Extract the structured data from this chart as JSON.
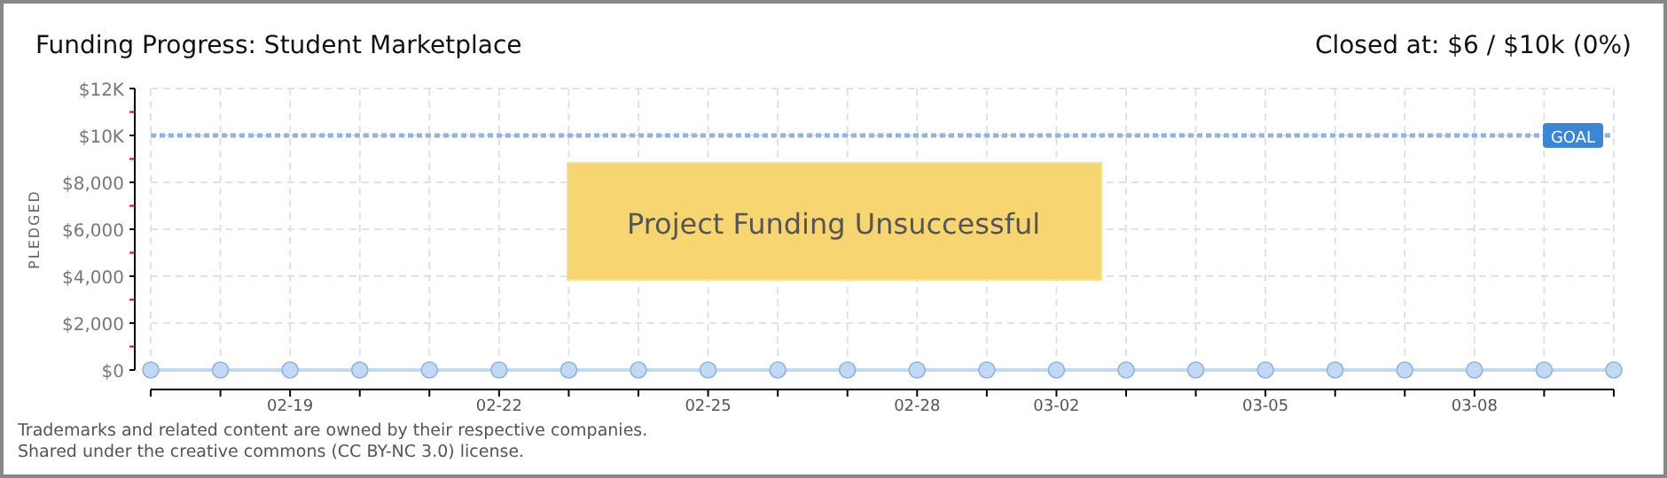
{
  "chart_data": {
    "type": "line",
    "title": "Funding Progress: Student Marketplace",
    "subtitle": "Closed at: $6 / $10k (0%)",
    "ylabel": "PLEDGED",
    "x": [
      "--02-17",
      "--02-18",
      "--02-19",
      "--02-20",
      "--02-21",
      "--02-22",
      "--02-23",
      "--02-24",
      "--02-25",
      "--02-26",
      "--02-27",
      "--02-28",
      "--03-01",
      "--03-02",
      "--03-03",
      "--03-04",
      "--03-05",
      "--03-06",
      "--03-07",
      "--03-08",
      "--03-09",
      "--03-10"
    ],
    "series": [
      {
        "color": "#c2d9f3",
        "values": [
          0,
          0,
          0,
          0,
          0,
          0,
          0,
          0,
          0,
          0,
          0,
          0,
          0,
          0,
          0,
          0,
          0,
          0,
          0,
          0,
          0,
          0
        ]
      }
    ],
    "xlim": [
      "--02-17",
      "--03-10"
    ],
    "xticks": [
      {
        "value": "--02-17",
        "label": null
      },
      {
        "value": "--02-18",
        "label": null
      },
      {
        "value": "--02-19",
        "label": "02-19"
      },
      {
        "value": "--02-20",
        "label": null
      },
      {
        "value": "--02-21",
        "label": null
      },
      {
        "value": "--02-22",
        "label": "02-22"
      },
      {
        "value": "--02-23",
        "label": null
      },
      {
        "value": "--02-24",
        "label": null
      },
      {
        "value": "--02-25",
        "label": "02-25"
      },
      {
        "value": "--02-26",
        "label": null
      },
      {
        "value": "--02-27",
        "label": null
      },
      {
        "value": "--02-28",
        "label": "02-28"
      },
      {
        "value": "--03-01",
        "label": null
      },
      {
        "value": "--03-02",
        "label": "03-02"
      },
      {
        "value": "--03-03",
        "label": null
      },
      {
        "value": "--03-04",
        "label": null
      },
      {
        "value": "--03-05",
        "label": "03-05"
      },
      {
        "value": "--03-06",
        "label": null
      },
      {
        "value": "--03-07",
        "label": null
      },
      {
        "value": "--03-08",
        "label": "03-08"
      },
      {
        "value": "--03-09",
        "label": null
      },
      {
        "value": "--03-10",
        "label": null
      }
    ],
    "ylim": [
      0,
      12000
    ],
    "yticks": [
      {
        "value": 0,
        "label": "$0"
      },
      {
        "value": 1000,
        "label": null
      },
      {
        "value": 2000,
        "label": "$2,000"
      },
      {
        "value": 3000,
        "label": null
      },
      {
        "value": 4000,
        "label": "$4,000"
      },
      {
        "value": 5000,
        "label": null
      },
      {
        "value": 6000,
        "label": "$6,000"
      },
      {
        "value": 7000,
        "label": null
      },
      {
        "value": 8000,
        "label": "$8,000"
      },
      {
        "value": 9000,
        "label": null
      },
      {
        "value": 10000,
        "label": "$10K"
      },
      {
        "value": 11000,
        "label": null
      },
      {
        "value": 12000,
        "label": "$12K"
      }
    ],
    "ref_lines": [
      {
        "axis": "y",
        "value": 10000,
        "label": "GOAL",
        "color": "#8fb3e3",
        "line_style": "dotted"
      }
    ],
    "annotations": [
      "Project Funding Unsuccessful",
      "Trademarks and related content are owned by their respective companies.",
      "Shared under the creative commons (CC BY-NC 3.0) license."
    ],
    "grid": true,
    "marker": "circle",
    "line_style": "solid"
  }
}
